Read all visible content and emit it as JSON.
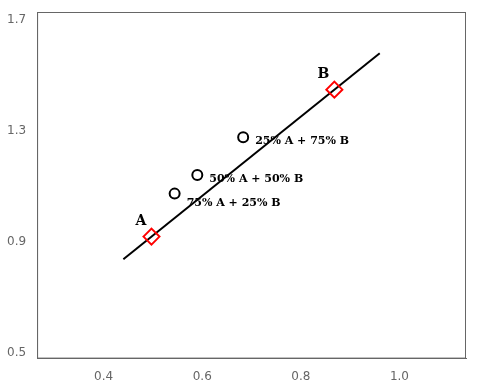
{
  "chart_data": {
    "type": "scatter",
    "series": [
      {
        "type": "line",
        "color": "#000000",
        "x": [
          0.44,
          0.96
        ],
        "values": [
          0.8385714285714286,
          1.5814285714285714
        ]
      },
      {
        "type": "scatter",
        "marker": "diamond",
        "color": "#ff0000",
        "x": [
          0.497,
          0.868
        ],
        "values": [
          0.92,
          1.45
        ]
      },
      {
        "type": "scatter",
        "marker": "circle",
        "color": "#000000",
        "x": [
          0.544,
          0.59,
          0.683
        ],
        "values": [
          1.075,
          1.142,
          1.278
        ]
      }
    ],
    "annotations": [
      {
        "text": "A",
        "x": 0.497,
        "y": 0.92
      },
      {
        "text": "B",
        "x": 0.868,
        "y": 1.45
      },
      {
        "text": "25% A + 75% B",
        "x": 0.683,
        "y": 1.278
      },
      {
        "text": "50% A + 50% B",
        "x": 0.59,
        "y": 1.142
      },
      {
        "text": "75% A + 25% B",
        "x": 0.544,
        "y": 1.075
      }
    ],
    "xlim": [
      0.265,
      1.135
    ],
    "ylim": [
      0.48,
      1.73
    ],
    "xticks": [
      0.4,
      0.6,
      0.8,
      {
        "value": 1,
        "label": "1.0"
      }
    ],
    "yticks": [
      0.5,
      0.9,
      1.3,
      1.7
    ],
    "grid": false
  }
}
